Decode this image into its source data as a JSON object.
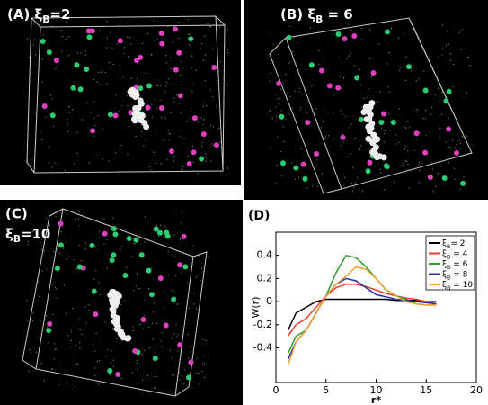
{
  "panels": [
    {
      "label": "(A) ξB=2"
    },
    {
      "label": "(B) ξB = 6"
    },
    {
      "label": "(C)",
      "sub_label": "ξB=10"
    }
  ],
  "chart_data": {
    "type": "line",
    "panel_label": "(D)",
    "x_label": "r*",
    "y_label": "W(r)",
    "x": [
      1.2,
      2,
      3,
      4,
      5,
      6,
      7,
      8,
      9,
      10,
      11,
      12,
      13,
      14,
      15,
      16
    ],
    "xlim": [
      0,
      20
    ],
    "xticks": [
      0,
      5,
      10,
      15,
      20
    ],
    "ylim": [
      -0.7,
      0.6
    ],
    "yticks": [
      -0.4,
      -0.2,
      0,
      0.2,
      0.4
    ],
    "series": [
      {
        "name": "ξB= 2",
        "color": "#000000",
        "values": [
          -0.25,
          -0.1,
          -0.05,
          0,
          0.02,
          0.02,
          0.02,
          0.02,
          0.02,
          0.02,
          0.02,
          0.01,
          0.01,
          0.01,
          0,
          0
        ]
      },
      {
        "name": "ξB = 4",
        "color": "#e8402a",
        "values": [
          -0.3,
          -0.2,
          -0.15,
          -0.05,
          0.05,
          0.12,
          0.15,
          0.15,
          0.13,
          0.1,
          0.07,
          0.05,
          0.03,
          0.02,
          0,
          -0.02
        ]
      },
      {
        "name": "ξB = 6",
        "color": "#2ca02c",
        "values": [
          -0.45,
          -0.3,
          -0.25,
          -0.1,
          0.05,
          0.25,
          0.4,
          0.38,
          0.3,
          0.2,
          0.1,
          0.05,
          0.02,
          -0.02,
          -0.03,
          -0.03
        ]
      },
      {
        "name": "ξB = 8",
        "color": "#2b2f9e",
        "values": [
          -0.5,
          -0.35,
          -0.25,
          -0.1,
          0.05,
          0.15,
          0.2,
          0.18,
          0.12,
          0.06,
          0.04,
          0.02,
          0.01,
          0,
          -0.01,
          -0.02
        ]
      },
      {
        "name": "ξB = 10",
        "color": "#f0a030",
        "values": [
          -0.55,
          -0.35,
          -0.25,
          -0.1,
          0.05,
          0.15,
          0.22,
          0.3,
          0.28,
          0.2,
          0.1,
          0.05,
          0,
          -0.02,
          -0.03,
          -0.03
        ]
      }
    ]
  }
}
